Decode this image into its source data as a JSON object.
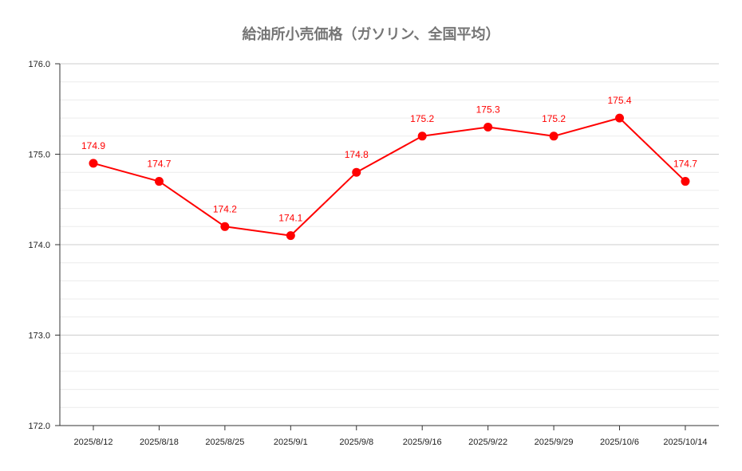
{
  "chart_data": {
    "type": "line",
    "title": "給油所小売価格（ガソリン、全国平均）",
    "xlabel": "",
    "ylabel": "",
    "categories": [
      "2025/8/12",
      "2025/8/18",
      "2025/8/25",
      "2025/9/1",
      "2025/9/8",
      "2025/9/16",
      "2025/9/22",
      "2025/9/29",
      "2025/10/6",
      "2025/10/14"
    ],
    "series": [
      {
        "values": [
          174.9,
          174.7,
          174.2,
          174.1,
          174.8,
          175.2,
          175.3,
          175.2,
          175.4,
          174.7
        ],
        "color": "#ff0000",
        "data_labels": [
          "174.9",
          "174.7",
          "174.2",
          "174.1",
          "174.8",
          "175.2",
          "175.3",
          "175.2",
          "175.4",
          "174.7"
        ]
      }
    ],
    "ylim": [
      172.0,
      176.0
    ],
    "y_ticks": [
      "172.0",
      "173.0",
      "174.0",
      "175.0",
      "176.0"
    ],
    "y_tick_values": [
      172.0,
      173.0,
      174.0,
      175.0,
      176.0
    ],
    "y_minor_step": 0.2,
    "grid": true,
    "legend": "none"
  }
}
